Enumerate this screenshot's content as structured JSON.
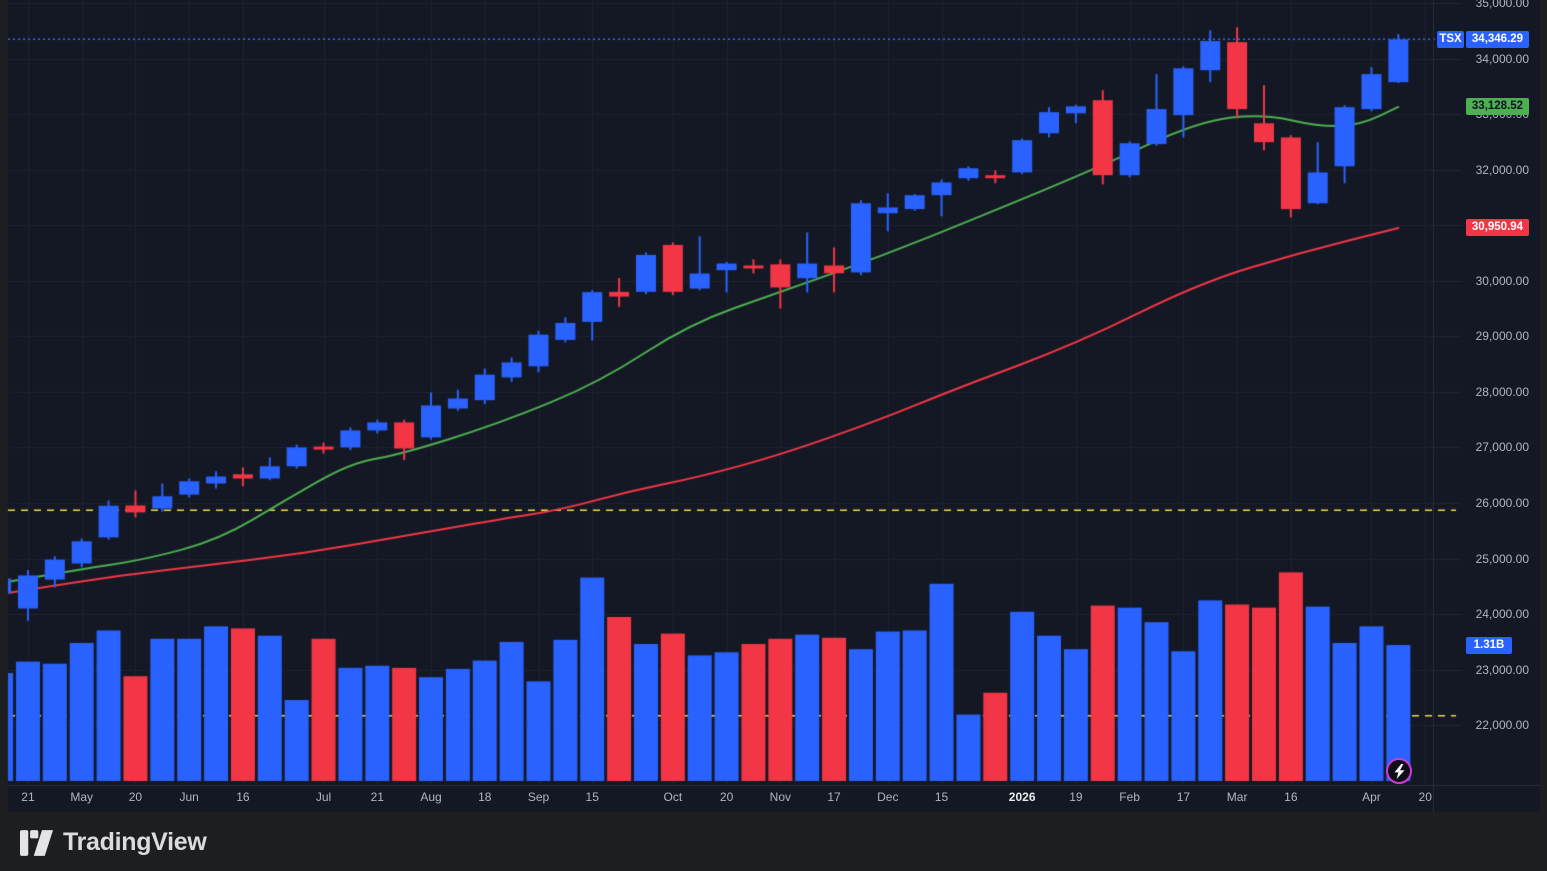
{
  "chart": {
    "symbol": "TSX",
    "last_price": "34,346.29",
    "ma_fast_label": "33,128.52",
    "ma_slow_label": "30,950.94",
    "volume_label": "1.31B"
  },
  "footer": {
    "logo_text": "TradingView"
  },
  "icons": {
    "flash": "lightning-bolt"
  },
  "colors": {
    "background": "#141824",
    "outer": "#1d1e22",
    "grid": "#1e2230",
    "border": "#2a2e39",
    "axis_text": "#b2b5be",
    "up": "#2962fe",
    "down": "#f23645",
    "ma_fast": "#4caf50",
    "ma_slow": "#f23645",
    "level_line": "#eed94e",
    "last_price_line": "#2f6bff",
    "flash_ring": "#cf3bd8"
  },
  "chart_data": {
    "type": "candlestick",
    "title": "TSX weekly candlestick chart with volume and two moving averages",
    "legend_position": "right-axis badges",
    "grid": true,
    "price_axis": {
      "side": "right",
      "ylim": [
        20910,
        35055
      ],
      "ticks": [
        {
          "label": "35,000.00",
          "value": 35000
        },
        {
          "label": "34,000.00",
          "value": 34000
        },
        {
          "label": "33,000.00",
          "value": 33000
        },
        {
          "label": "32,000.00",
          "value": 32000
        },
        {
          "label": "31,000.00",
          "value": 31000
        },
        {
          "label": "30,000.00",
          "value": 30000
        },
        {
          "label": "29,000.00",
          "value": 29000
        },
        {
          "label": "28,000.00",
          "value": 28000
        },
        {
          "label": "27,000.00",
          "value": 27000
        },
        {
          "label": "26,000.00",
          "value": 26000
        },
        {
          "label": "25,000.00",
          "value": 25000
        },
        {
          "label": "24,000.00",
          "value": 24000
        },
        {
          "label": "23,000.00",
          "value": 23000
        },
        {
          "label": "22,000.00",
          "value": 22000
        }
      ]
    },
    "time_axis_ticks": [
      {
        "i": 1,
        "label": "21"
      },
      {
        "i": 3,
        "label": "May"
      },
      {
        "i": 5,
        "label": "20"
      },
      {
        "i": 7,
        "label": "Jun"
      },
      {
        "i": 9,
        "label": "16"
      },
      {
        "i": 12,
        "label": "Jul"
      },
      {
        "i": 14,
        "label": "21"
      },
      {
        "i": 16,
        "label": "Aug"
      },
      {
        "i": 18,
        "label": "18"
      },
      {
        "i": 20,
        "label": "Sep"
      },
      {
        "i": 22,
        "label": "15"
      },
      {
        "i": 25,
        "label": "Oct"
      },
      {
        "i": 27,
        "label": "20"
      },
      {
        "i": 29,
        "label": "Nov"
      },
      {
        "i": 31,
        "label": "17"
      },
      {
        "i": 33,
        "label": "Dec"
      },
      {
        "i": 35,
        "label": "15"
      },
      {
        "i": 38,
        "label": "2026",
        "bold": true
      },
      {
        "i": 40,
        "label": "19"
      },
      {
        "i": 42,
        "label": "Feb"
      },
      {
        "i": 44,
        "label": "17"
      },
      {
        "i": 46,
        "label": "Mar"
      },
      {
        "i": 48,
        "label": "16"
      },
      {
        "i": 51,
        "label": "Apr"
      },
      {
        "i": 53,
        "label": "20"
      }
    ],
    "levels": [
      25870,
      22170
    ],
    "last_price": 34346.29,
    "volume_unit": "B",
    "candles_ohlcv": [
      [
        24370,
        24660,
        24300,
        24640,
        1.04
      ],
      [
        24100,
        24790,
        23880,
        24695,
        1.15
      ],
      [
        24620,
        25040,
        24480,
        24980,
        1.13
      ],
      [
        24910,
        25360,
        24840,
        25310,
        1.33
      ],
      [
        25380,
        26045,
        25340,
        25950,
        1.45
      ],
      [
        25955,
        26225,
        25740,
        25830,
        1.01
      ],
      [
        25900,
        26350,
        25840,
        26120,
        1.37
      ],
      [
        26150,
        26440,
        26100,
        26390,
        1.37
      ],
      [
        26350,
        26570,
        26260,
        26475,
        1.49
      ],
      [
        26515,
        26640,
        26300,
        26440,
        1.47
      ],
      [
        26440,
        26820,
        26410,
        26660,
        1.4
      ],
      [
        26660,
        27050,
        26620,
        27000,
        0.78
      ],
      [
        27015,
        27090,
        26890,
        26965,
        1.37
      ],
      [
        27000,
        27360,
        26950,
        27305,
        1.09
      ],
      [
        27305,
        27500,
        27250,
        27450,
        1.11
      ],
      [
        27450,
        27500,
        26770,
        26980,
        1.09
      ],
      [
        27180,
        27990,
        27140,
        27755,
        1.0
      ],
      [
        27700,
        28040,
        27660,
        27880,
        1.08
      ],
      [
        27850,
        28420,
        27780,
        28310,
        1.16
      ],
      [
        28260,
        28620,
        28180,
        28530,
        1.34
      ],
      [
        28460,
        29100,
        28350,
        29030,
        0.96
      ],
      [
        28935,
        29345,
        28890,
        29240,
        1.36
      ],
      [
        29260,
        29830,
        28925,
        29795,
        1.96
      ],
      [
        29800,
        30050,
        29530,
        29715,
        1.58
      ],
      [
        29800,
        30510,
        29760,
        30465,
        1.32
      ],
      [
        30645,
        30690,
        29740,
        29800,
        1.42
      ],
      [
        29860,
        30800,
        29830,
        30130,
        1.21
      ],
      [
        30190,
        30340,
        29790,
        30310,
        1.24
      ],
      [
        30275,
        30385,
        30130,
        30225,
        1.32
      ],
      [
        30295,
        30385,
        29500,
        29880,
        1.37
      ],
      [
        30045,
        30870,
        29790,
        30310,
        1.41
      ],
      [
        30275,
        30600,
        29790,
        30135,
        1.38
      ],
      [
        30150,
        31450,
        30100,
        31395,
        1.27
      ],
      [
        31215,
        31575,
        30890,
        31320,
        1.44
      ],
      [
        31290,
        31560,
        31260,
        31540,
        1.45
      ],
      [
        31540,
        31820,
        31160,
        31770,
        1.9
      ],
      [
        31845,
        32060,
        31800,
        32025,
        0.64
      ],
      [
        31900,
        31990,
        31755,
        31845,
        0.85
      ],
      [
        31950,
        32560,
        31920,
        32530,
        1.63
      ],
      [
        32655,
        33125,
        32580,
        33035,
        1.4
      ],
      [
        33015,
        33170,
        32835,
        33140,
        1.27
      ],
      [
        33250,
        33430,
        31735,
        31900,
        1.69
      ],
      [
        31900,
        32510,
        31860,
        32475,
        1.67
      ],
      [
        32460,
        33720,
        32430,
        33090,
        1.53
      ],
      [
        32980,
        33860,
        32580,
        33825,
        1.25
      ],
      [
        33790,
        34510,
        33575,
        34315,
        1.74
      ],
      [
        34295,
        34565,
        32925,
        33090,
        1.7
      ],
      [
        32835,
        33520,
        32350,
        32495,
        1.67
      ],
      [
        32580,
        32620,
        31140,
        31290,
        2.01
      ],
      [
        31395,
        32495,
        31380,
        31950,
        1.68
      ],
      [
        32060,
        33160,
        31755,
        33125,
        1.33
      ],
      [
        33090,
        33845,
        33050,
        33720,
        1.49
      ],
      [
        33575,
        34440,
        33560,
        34346.29,
        1.31
      ]
    ],
    "ma_fast_points": [
      [
        0,
        24560
      ],
      [
        3,
        24810
      ],
      [
        5.3,
        24975
      ],
      [
        8.1,
        25335
      ],
      [
        10.6,
        26055
      ],
      [
        13,
        26720
      ],
      [
        14.8,
        26865
      ],
      [
        18.6,
        27440
      ],
      [
        22.3,
        28180
      ],
      [
        25.6,
        29220
      ],
      [
        29,
        29800
      ],
      [
        32.7,
        30430
      ],
      [
        36.4,
        31150
      ],
      [
        40.9,
        32050
      ],
      [
        44.6,
        32875
      ],
      [
        47,
        33000
      ],
      [
        49.1,
        32770
      ],
      [
        50.6,
        32805
      ],
      [
        52,
        33128.52
      ]
    ],
    "ma_slow_points": [
      [
        0,
        24360
      ],
      [
        3.7,
        24650
      ],
      [
        7.4,
        24865
      ],
      [
        11.1,
        25080
      ],
      [
        14.8,
        25390
      ],
      [
        18.6,
        25710
      ],
      [
        20.8,
        25875
      ],
      [
        23.3,
        26200
      ],
      [
        26,
        26470
      ],
      [
        29,
        26865
      ],
      [
        32.7,
        27495
      ],
      [
        35.6,
        28070
      ],
      [
        40.1,
        28880
      ],
      [
        44.6,
        29960
      ],
      [
        48.3,
        30500
      ],
      [
        52,
        30950.94
      ]
    ]
  }
}
